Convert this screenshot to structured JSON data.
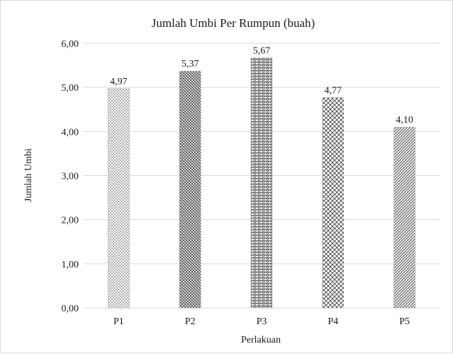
{
  "chart_data": {
    "type": "bar",
    "title": "Jumlah Umbi Per Rumpun (buah)",
    "xlabel": "Perlakuan",
    "ylabel": "Jumlah Umbi",
    "categories": [
      "P1",
      "P2",
      "P3",
      "P4",
      "P5"
    ],
    "values": [
      4.97,
      5.37,
      5.67,
      4.77,
      4.1
    ],
    "value_labels": [
      "4,97",
      "5,37",
      "5,67",
      "4,77",
      "4,10"
    ],
    "ylim": [
      0,
      6
    ],
    "yticks": [
      0,
      1,
      2,
      3,
      4,
      5,
      6
    ],
    "ytick_labels": [
      "0,00",
      "1,00",
      "2,00",
      "3,00",
      "4,00",
      "5,00",
      "6,00"
    ],
    "grid": true,
    "legend": "none",
    "bar_patterns": [
      "dots",
      "dense-weave",
      "scales",
      "crosshatch",
      "diagonal"
    ],
    "colors": {
      "grid": "#d9d9d9",
      "bar_ink": "#404040",
      "text": "#1a1a1a"
    }
  }
}
